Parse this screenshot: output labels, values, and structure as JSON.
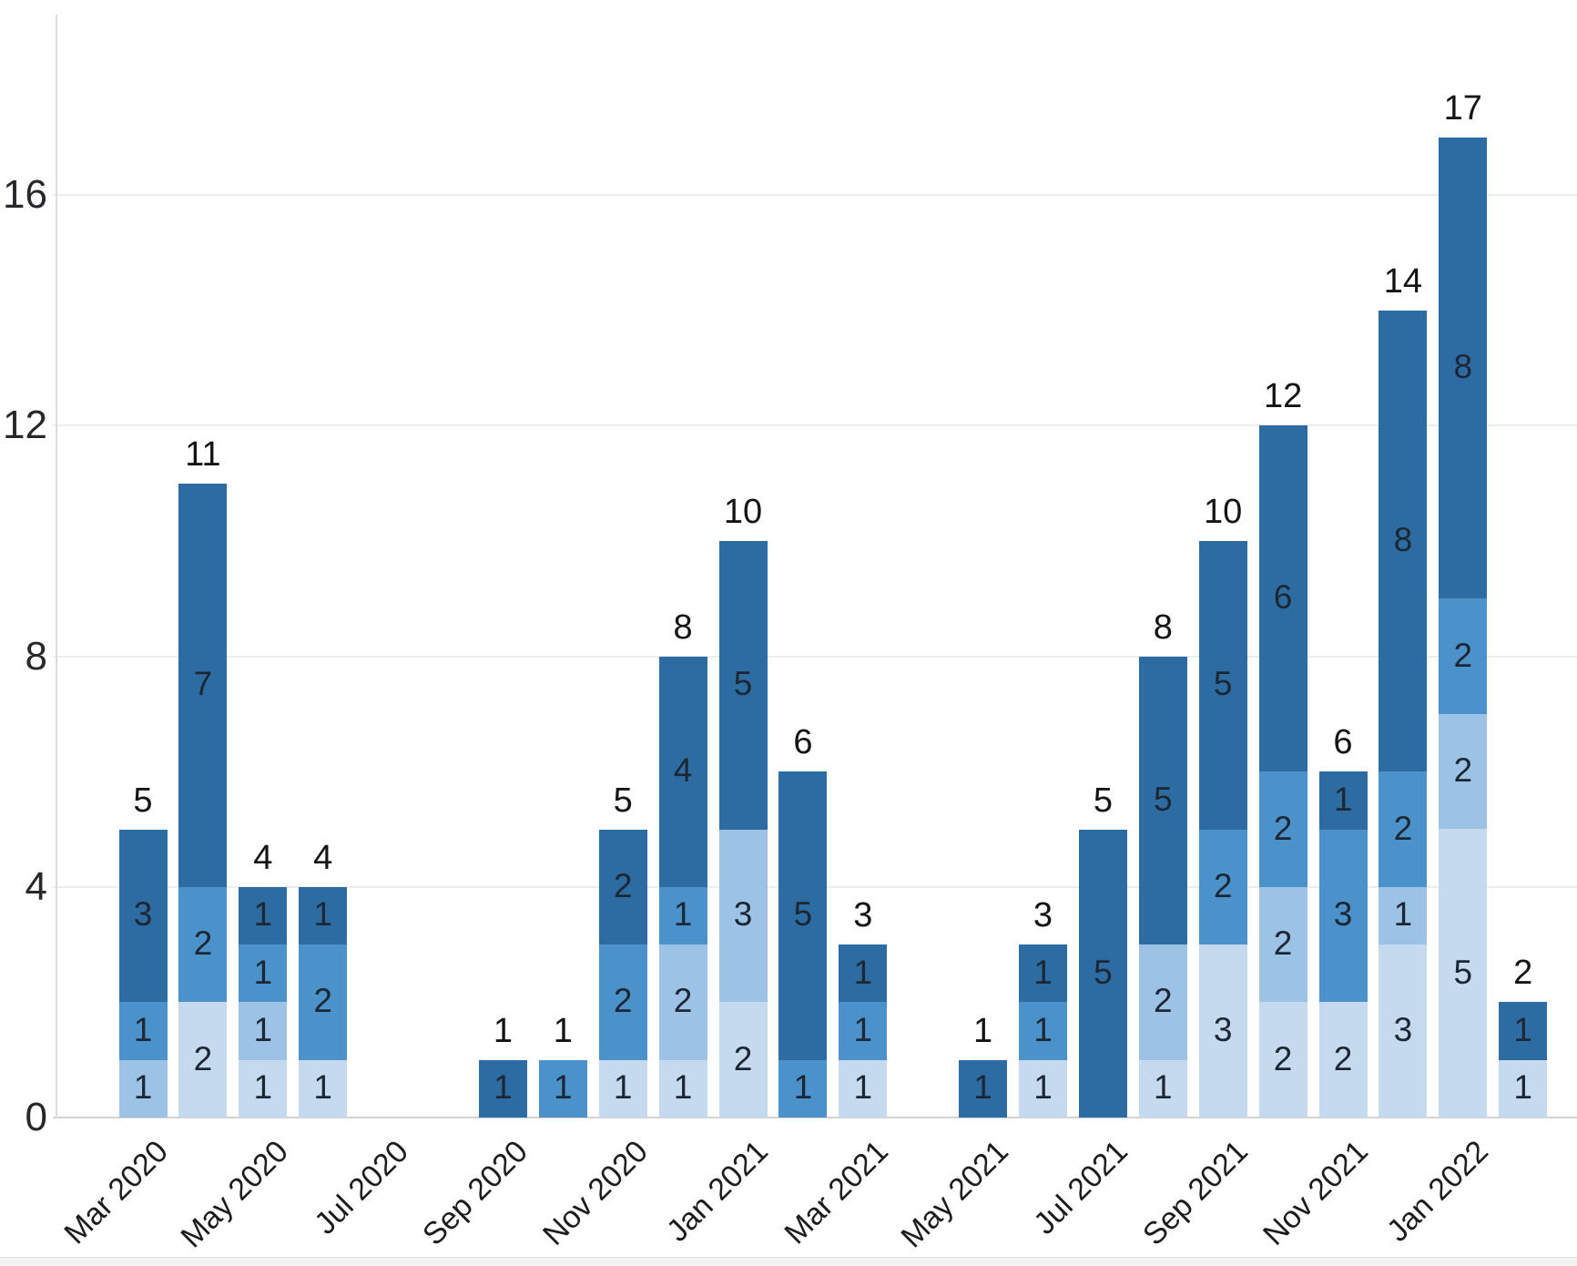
{
  "chart_data": {
    "type": "bar",
    "stacked": true,
    "orientation": "vertical",
    "title": "",
    "xlabel": "",
    "ylabel": "",
    "grid": "horizontal",
    "legend": "none",
    "value_labels": "inside segments, totals above bars",
    "x": [
      "Mar 2020",
      "Apr 2020",
      "May 2020",
      "Jun 2020",
      "Jul 2020",
      "Aug 2020",
      "Sep 2020",
      "Oct 2020",
      "Nov 2020",
      "Dec 2020",
      "Jan 2021",
      "Feb 2021",
      "Mar 2021",
      "Apr 2021",
      "May 2021",
      "Jun 2021",
      "Jul 2021",
      "Aug 2021",
      "Sep 2021",
      "Oct 2021",
      "Nov 2021",
      "Dec 2021",
      "Jan 2022",
      "Feb 2022"
    ],
    "x_ticks_shown": [
      "Mar 2020",
      "May 2020",
      "Jul 2020",
      "Sep 2020",
      "Nov 2020",
      "Jan 2021",
      "Mar 2021",
      "May 2021",
      "Jul 2021",
      "Sep 2021",
      "Nov 2021",
      "Jan 2022"
    ],
    "series": [
      {
        "name": "shade-lightest-blue",
        "color": "#c6daef",
        "values": [
          0,
          2,
          1,
          1,
          0,
          0,
          0,
          0,
          1,
          1,
          2,
          0,
          1,
          0,
          0,
          1,
          0,
          1,
          3,
          2,
          2,
          3,
          5,
          1
        ]
      },
      {
        "name": "shade-light-blue",
        "color": "#9cc2e5",
        "values": [
          1,
          0,
          1,
          0,
          0,
          0,
          0,
          0,
          0,
          2,
          3,
          0,
          0,
          0,
          0,
          0,
          0,
          2,
          0,
          2,
          0,
          1,
          2,
          0
        ]
      },
      {
        "name": "shade-medium-blue",
        "color": "#4b92cb",
        "values": [
          1,
          2,
          1,
          2,
          0,
          0,
          0,
          1,
          2,
          1,
          0,
          1,
          1,
          0,
          0,
          1,
          0,
          0,
          2,
          2,
          3,
          2,
          2,
          0
        ]
      },
      {
        "name": "shade-dark-blue",
        "color": "#2d6ca3",
        "values": [
          3,
          7,
          1,
          1,
          0,
          0,
          1,
          0,
          2,
          4,
          5,
          5,
          1,
          0,
          1,
          1,
          5,
          5,
          5,
          6,
          1,
          8,
          8,
          1
        ]
      }
    ],
    "totals": [
      5,
      11,
      4,
      4,
      0,
      0,
      1,
      1,
      5,
      8,
      10,
      6,
      3,
      0,
      1,
      3,
      5,
      8,
      10,
      12,
      6,
      14,
      17,
      2
    ],
    "y_axis": {
      "ticks": [
        0,
        4,
        8,
        12,
        16
      ],
      "min": 0,
      "max_data_value": 17
    }
  },
  "colors": {
    "background": "#ffffff",
    "gridline": "#ededed",
    "baseline": "#d4d4d4",
    "axis_line": "#dcdcdc",
    "y_label": "#26282c",
    "x_label": "#1c1c1c",
    "segment_label": "#1c2733",
    "total_label": "#141414",
    "bottom_strip": "#f3f3f3"
  }
}
